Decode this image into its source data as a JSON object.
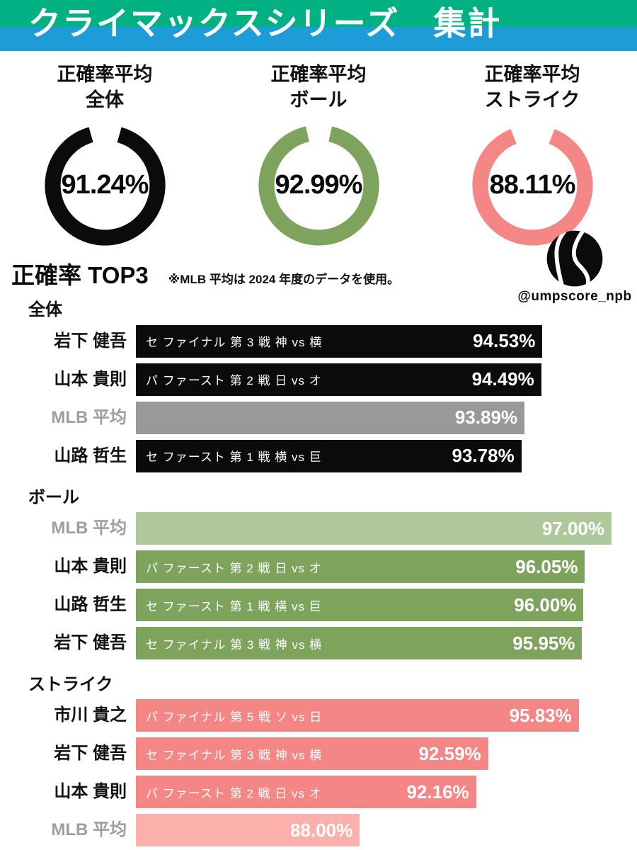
{
  "page": {
    "background": "#ffffff"
  },
  "header": {
    "title": "クライマックスシリーズ　集計",
    "band_top_color": "#01b083",
    "band_bottom_color": "#1e9cd7",
    "text_color": "#ffffff"
  },
  "heading": {
    "title": "正確率 TOP3",
    "note": "※MLB 平均は 2024 年度のデータを使用。"
  },
  "branding": {
    "handle": "@umpscore_npb",
    "ball_icon": "tennis-ball-icon",
    "ball_color": "#0b0b0b"
  },
  "chart_data": [
    {
      "type": "donut",
      "title": "正確率平均",
      "subtitle": "全体",
      "value": 91.24,
      "value_label": "91.24%",
      "color": "#0b0b0b"
    },
    {
      "type": "donut",
      "title": "正確率平均",
      "subtitle": "ボール",
      "value": 92.99,
      "value_label": "92.99%",
      "color": "#7da35c"
    },
    {
      "type": "donut",
      "title": "正確率平均",
      "subtitle": "ストライク",
      "value": 88.11,
      "value_label": "88.11%",
      "color": "#f58686"
    },
    {
      "type": "bar",
      "section": "全体",
      "axis_min": 80,
      "axis_max": 97,
      "bar_color": "#0b0b0b",
      "mlb_bar_color": "#999999",
      "bars": [
        {
          "name": "岩下 健吾",
          "game": "セ ファイナル 第 3 戦 神 vs 横",
          "value": 94.53,
          "value_label": "94.53%",
          "is_mlb": false
        },
        {
          "name": "山本 貴則",
          "game": "パ ファースト 第 2 戦 日 vs オ",
          "value": 94.49,
          "value_label": "94.49%",
          "is_mlb": false
        },
        {
          "name": "MLB 平均",
          "game": "",
          "value": 93.89,
          "value_label": "93.89%",
          "is_mlb": true
        },
        {
          "name": "山路 哲生",
          "game": "セ ファースト 第 1 戦 横 vs 巨",
          "value": 93.78,
          "value_label": "93.78%",
          "is_mlb": false
        }
      ]
    },
    {
      "type": "bar",
      "section": "ボール",
      "axis_min": 80,
      "axis_max": 97,
      "bar_color": "#7da35c",
      "mlb_bar_color": "#afc89b",
      "bars": [
        {
          "name": "MLB 平均",
          "game": "",
          "value": 97.0,
          "value_label": "97.00%",
          "is_mlb": true
        },
        {
          "name": "山本 貴則",
          "game": "パ ファースト 第 2 戦 日 vs オ",
          "value": 96.05,
          "value_label": "96.05%",
          "is_mlb": false
        },
        {
          "name": "山路 哲生",
          "game": "セ ファースト 第 1 戦 横 vs 巨",
          "value": 96.0,
          "value_label": "96.00%",
          "is_mlb": false
        },
        {
          "name": "岩下 健吾",
          "game": "セ ファイナル 第 3 戦 神 vs 横",
          "value": 95.95,
          "value_label": "95.95%",
          "is_mlb": false
        }
      ]
    },
    {
      "type": "bar",
      "section": "ストライク",
      "axis_min": 80,
      "axis_max": 97,
      "bar_color": "#f58686",
      "mlb_bar_color": "#fbb0ab",
      "bars": [
        {
          "name": "市川 貴之",
          "game": "パ ファイナル 第 5 戦 ソ vs 日",
          "value": 95.83,
          "value_label": "95.83%",
          "is_mlb": false
        },
        {
          "name": "岩下 健吾",
          "game": "セ ファイナル 第 3 戦 神 vs 横",
          "value": 92.59,
          "value_label": "92.59%",
          "is_mlb": false
        },
        {
          "name": "山本 貴則",
          "game": "パ ファースト 第 2 戦 日 vs オ",
          "value": 92.16,
          "value_label": "92.16%",
          "is_mlb": false
        },
        {
          "name": "MLB 平均",
          "game": "",
          "value": 88.0,
          "value_label": "88.00%",
          "is_mlb": true
        }
      ]
    }
  ]
}
